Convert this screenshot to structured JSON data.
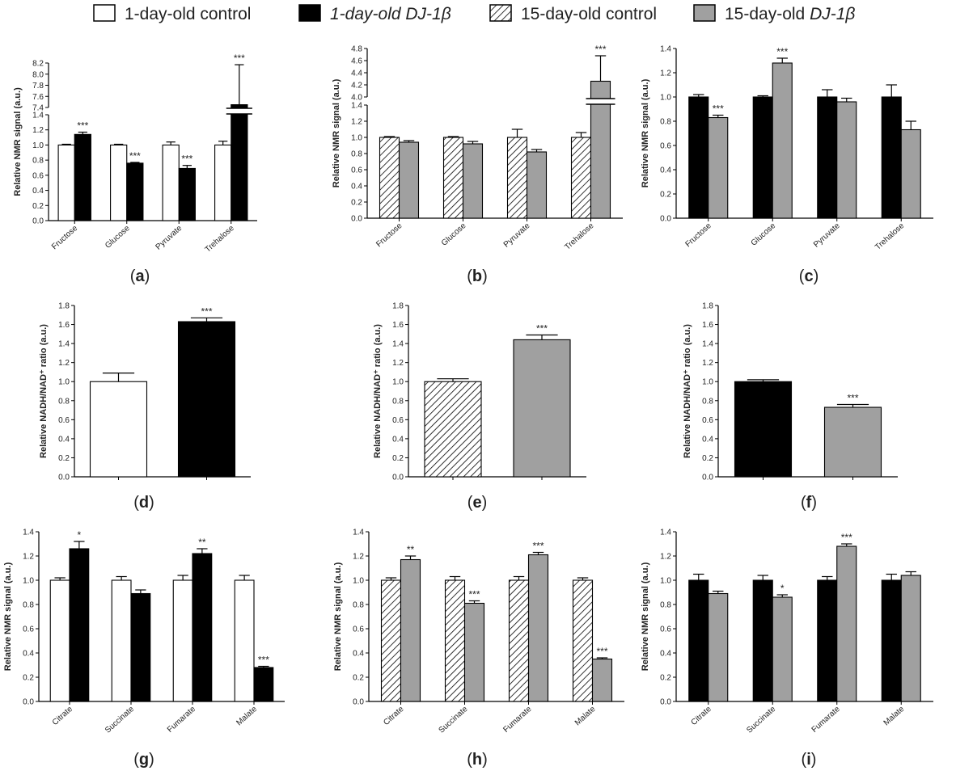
{
  "figure_title": "",
  "colors": {
    "one_day_control": "#ffffff",
    "one_day_dj1b": "#000000",
    "fifteen_day_control_hatch": "#000000",
    "fifteen_day_dj1b": "#a0a0a0"
  },
  "legend": [
    {
      "label": "1-day-old control",
      "style": "white",
      "italic": false
    },
    {
      "label": "1-day-old DJ-1β",
      "style": "black",
      "italic": true
    },
    {
      "label": "15-day-old control",
      "style": "hatch",
      "italic": false
    },
    {
      "label": "15-day-old DJ-1β",
      "style": "gray",
      "italic": false,
      "prefix": "15-day-old ",
      "italic_part": "DJ-1β"
    }
  ],
  "chart_data": [
    {
      "id": "a",
      "panel_label": "(a)",
      "type": "bar",
      "ylabel": "Relative NMR signal  (a.u.)",
      "categories": [
        "Fructose",
        "Glucose",
        "Pyruvate",
        "Trehalose"
      ],
      "broken_axis": true,
      "ylim_lower": [
        0,
        1.4
      ],
      "ylim_upper": [
        7.4,
        8.2
      ],
      "yticks_lower": [
        "0.0",
        "0.2",
        "0.4",
        "0.6",
        "0.8",
        "1.0",
        "1.2",
        "1.4"
      ],
      "yticks_upper": [
        "7.4",
        "7.6",
        "7.8",
        "8.0",
        "8.2"
      ],
      "series": [
        {
          "name": "1-day-old control",
          "style": "white",
          "values": [
            1.0,
            1.0,
            1.0,
            1.0
          ],
          "errors": [
            0.01,
            0.01,
            0.04,
            0.05
          ]
        },
        {
          "name": "1-day-old DJ-1β",
          "style": "black",
          "values": [
            1.14,
            0.76,
            0.69,
            7.45
          ],
          "errors": [
            0.03,
            0.01,
            0.04,
            0.72
          ]
        }
      ],
      "annotations": [
        {
          "series": 1,
          "index": 0,
          "text": "***"
        },
        {
          "series": 1,
          "index": 1,
          "text": "***"
        },
        {
          "series": 1,
          "index": 2,
          "text": "***"
        },
        {
          "series": 1,
          "index": 3,
          "text": "***"
        }
      ]
    },
    {
      "id": "b",
      "panel_label": "(b)",
      "type": "bar",
      "ylabel": "Relative NMR signal  (a.u.)",
      "categories": [
        "Fructose",
        "Glucose",
        "Pyruvate",
        "Trehalose"
      ],
      "broken_axis": true,
      "ylim_lower": [
        0,
        1.4
      ],
      "ylim_upper": [
        4.0,
        4.8
      ],
      "yticks_lower": [
        "0.0",
        "0.2",
        "0.4",
        "0.6",
        "0.8",
        "1.0",
        "1.2",
        "1.4"
      ],
      "yticks_upper": [
        "4.0",
        "4.2",
        "4.4",
        "4.6",
        "4.8"
      ],
      "series": [
        {
          "name": "15-day-old control",
          "style": "hatch",
          "values": [
            1.0,
            1.0,
            1.0,
            1.0
          ],
          "errors": [
            0.01,
            0.01,
            0.1,
            0.06
          ]
        },
        {
          "name": "15-day-old DJ-1β",
          "style": "gray",
          "values": [
            0.94,
            0.92,
            0.82,
            4.26
          ],
          "errors": [
            0.02,
            0.03,
            0.03,
            0.42
          ]
        }
      ],
      "annotations": [
        {
          "series": 1,
          "index": 3,
          "text": "***"
        }
      ]
    },
    {
      "id": "c",
      "panel_label": "(c)",
      "type": "bar",
      "ylabel": "Relative NMR signal  (a.u.)",
      "categories": [
        "Fructose",
        "Glucose",
        "Pyruvate",
        "Trehalose"
      ],
      "broken_axis": false,
      "ylim": [
        0,
        1.4
      ],
      "yticks": [
        "0.0",
        "0.2",
        "0.4",
        "0.6",
        "0.8",
        "1.0",
        "1.2",
        "1.4"
      ],
      "series": [
        {
          "name": "1-day-old DJ-1β",
          "style": "black",
          "values": [
            1.0,
            1.0,
            1.0,
            1.0
          ],
          "errors": [
            0.02,
            0.01,
            0.06,
            0.1
          ]
        },
        {
          "name": "15-day-old DJ-1β",
          "style": "gray",
          "values": [
            0.83,
            1.28,
            0.96,
            0.73
          ],
          "errors": [
            0.02,
            0.04,
            0.03,
            0.07
          ]
        }
      ],
      "annotations": [
        {
          "series": 1,
          "index": 0,
          "text": "***"
        },
        {
          "series": 1,
          "index": 1,
          "text": "***"
        }
      ]
    },
    {
      "id": "d",
      "panel_label": "(d)",
      "type": "bar",
      "ylabel": "Relative NADH/NAD⁺ ratio (a.u.)",
      "categories": [
        "",
        ""
      ],
      "broken_axis": false,
      "ylim": [
        0,
        1.8
      ],
      "yticks": [
        "0.0",
        "0.2",
        "0.4",
        "0.6",
        "0.8",
        "1.0",
        "1.2",
        "1.4",
        "1.6",
        "1.8"
      ],
      "series": [
        {
          "name": "single",
          "styles": [
            "white",
            "black"
          ],
          "values": [
            1.0,
            1.63
          ],
          "errors": [
            0.09,
            0.04
          ]
        }
      ],
      "annotations": [
        {
          "series": 0,
          "index": 1,
          "text": "***"
        }
      ]
    },
    {
      "id": "e",
      "panel_label": "(e)",
      "type": "bar",
      "ylabel": "Relative NADH/NAD⁺ ratio (a.u.)",
      "categories": [
        "",
        ""
      ],
      "broken_axis": false,
      "ylim": [
        0,
        1.8
      ],
      "yticks": [
        "0.0",
        "0.2",
        "0.4",
        "0.6",
        "0.8",
        "1.0",
        "1.2",
        "1.4",
        "1.6",
        "1.8"
      ],
      "series": [
        {
          "name": "single",
          "styles": [
            "hatch",
            "gray"
          ],
          "values": [
            1.0,
            1.44
          ],
          "errors": [
            0.03,
            0.05
          ]
        }
      ],
      "annotations": [
        {
          "series": 0,
          "index": 1,
          "text": "***"
        }
      ]
    },
    {
      "id": "f",
      "panel_label": "(f)",
      "type": "bar",
      "ylabel": "Relative NADH/NAD⁺ ratio (a.u.)",
      "categories": [
        "",
        ""
      ],
      "broken_axis": false,
      "ylim": [
        0,
        1.8
      ],
      "yticks": [
        "0.0",
        "0.2",
        "0.4",
        "0.6",
        "0.8",
        "1.0",
        "1.2",
        "1.4",
        "1.6",
        "1.8"
      ],
      "series": [
        {
          "name": "single",
          "styles": [
            "black",
            "gray"
          ],
          "values": [
            1.0,
            0.73
          ],
          "errors": [
            0.02,
            0.03
          ]
        }
      ],
      "annotations": [
        {
          "series": 0,
          "index": 1,
          "text": "***"
        }
      ]
    },
    {
      "id": "g",
      "panel_label": "(g)",
      "type": "bar",
      "ylabel": "Relative NMR signal  (a.u.)",
      "categories": [
        "Citrate",
        "Succinate",
        "Fumarate",
        "Malate"
      ],
      "broken_axis": false,
      "ylim": [
        0,
        1.4
      ],
      "yticks": [
        "0.0",
        "0.2",
        "0.4",
        "0.6",
        "0.8",
        "1.0",
        "1.2",
        "1.4"
      ],
      "series": [
        {
          "name": "1-day-old control",
          "style": "white",
          "values": [
            1.0,
            1.0,
            1.0,
            1.0
          ],
          "errors": [
            0.02,
            0.03,
            0.04,
            0.04
          ]
        },
        {
          "name": "1-day-old DJ-1β",
          "style": "black",
          "values": [
            1.26,
            0.89,
            1.22,
            0.28
          ],
          "errors": [
            0.06,
            0.03,
            0.04,
            0.01
          ]
        }
      ],
      "annotations": [
        {
          "series": 1,
          "index": 0,
          "text": "*"
        },
        {
          "series": 1,
          "index": 2,
          "text": "**"
        },
        {
          "series": 1,
          "index": 3,
          "text": "***"
        }
      ]
    },
    {
      "id": "h",
      "panel_label": "(h)",
      "type": "bar",
      "ylabel": "Relative NMR signal  (a.u.)",
      "categories": [
        "Citrate",
        "Succinate",
        "Fumarate",
        "Malate"
      ],
      "broken_axis": false,
      "ylim": [
        0,
        1.4
      ],
      "yticks": [
        "0.0",
        "0.2",
        "0.4",
        "0.6",
        "0.8",
        "1.0",
        "1.2",
        "1.4"
      ],
      "series": [
        {
          "name": "15-day-old control",
          "style": "hatch",
          "values": [
            1.0,
            1.0,
            1.0,
            1.0
          ],
          "errors": [
            0.02,
            0.03,
            0.03,
            0.02
          ]
        },
        {
          "name": "15-day-old DJ-1β",
          "style": "gray",
          "values": [
            1.17,
            0.81,
            1.21,
            0.35
          ],
          "errors": [
            0.03,
            0.02,
            0.02,
            0.01
          ]
        }
      ],
      "annotations": [
        {
          "series": 1,
          "index": 0,
          "text": "**"
        },
        {
          "series": 1,
          "index": 1,
          "text": "***"
        },
        {
          "series": 1,
          "index": 2,
          "text": "***"
        },
        {
          "series": 1,
          "index": 3,
          "text": "***"
        }
      ]
    },
    {
      "id": "i",
      "panel_label": "(i)",
      "type": "bar",
      "ylabel": "Relative NMR signal  (a.u.)",
      "categories": [
        "Citrate",
        "Succinate",
        "Fumarate",
        "Malate"
      ],
      "broken_axis": false,
      "ylim": [
        0,
        1.4
      ],
      "yticks": [
        "0.0",
        "0.2",
        "0.4",
        "0.6",
        "0.8",
        "1.0",
        "1.2",
        "1.4"
      ],
      "series": [
        {
          "name": "1-day-old DJ-1β",
          "style": "black",
          "values": [
            1.0,
            1.0,
            1.0,
            1.0
          ],
          "errors": [
            0.05,
            0.04,
            0.03,
            0.05
          ]
        },
        {
          "name": "15-day-old DJ-1β",
          "style": "gray",
          "values": [
            0.89,
            0.86,
            1.28,
            1.04
          ],
          "errors": [
            0.02,
            0.02,
            0.02,
            0.03
          ]
        }
      ],
      "annotations": [
        {
          "series": 1,
          "index": 1,
          "text": "*"
        },
        {
          "series": 1,
          "index": 2,
          "text": "***"
        }
      ]
    }
  ]
}
